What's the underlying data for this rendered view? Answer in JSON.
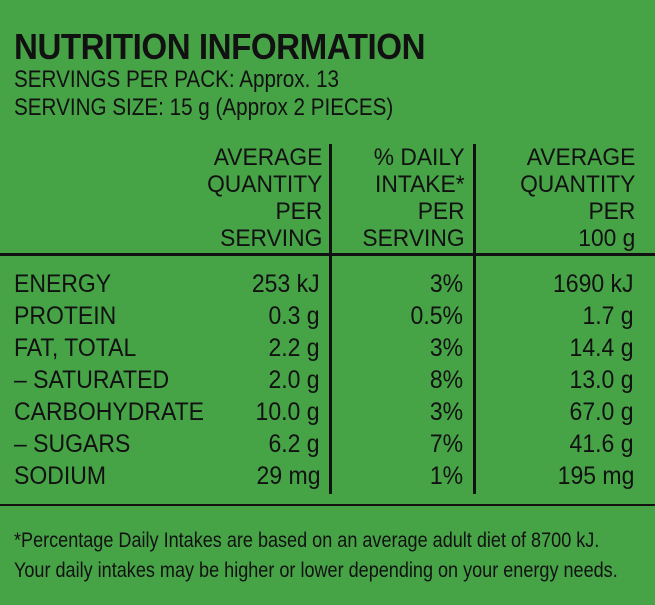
{
  "title": "NUTRITION INFORMATION",
  "servings_per_pack": "SERVINGS PER PACK: Approx. 13",
  "serving_size": "SERVING SIZE: 15 g (Approx 2 PIECES)",
  "headers": {
    "per_serving": "AVERAGE\nQUANTITY\nPER\nSERVING",
    "daily_intake": "% DAILY\nINTAKE*\nPER\nSERVING",
    "per_100g": "AVERAGE\nQUANTITY\nPER\n100 g"
  },
  "rows": [
    {
      "label": "ENERGY",
      "per_serving": "253 kJ",
      "daily_intake": "3%",
      "per_100g": "1690 kJ"
    },
    {
      "label": "PROTEIN",
      "per_serving": "0.3 g",
      "daily_intake": "0.5%",
      "per_100g": "1.7 g"
    },
    {
      "label": "FAT, TOTAL",
      "per_serving": "2.2 g",
      "daily_intake": "3%",
      "per_100g": "14.4 g"
    },
    {
      "label": "– SATURATED",
      "per_serving": "2.0 g",
      "daily_intake": "8%",
      "per_100g": "13.0 g"
    },
    {
      "label": "CARBOHYDRATE",
      "per_serving": "10.0 g",
      "daily_intake": "3%",
      "per_100g": "67.0 g"
    },
    {
      "label": "– SUGARS",
      "per_serving": "6.2 g",
      "daily_intake": "7%",
      "per_100g": "41.6 g"
    },
    {
      "label": "SODIUM",
      "per_serving": "29 mg",
      "daily_intake": "1%",
      "per_100g": "195 mg"
    }
  ],
  "footnote_line1": "*Percentage Daily Intakes are based on an average adult diet of 8700 kJ.",
  "footnote_line2": "Your daily intakes may be higher or lower depending on your energy needs.",
  "colors": {
    "background": "#46a447",
    "ink": "#111111"
  }
}
